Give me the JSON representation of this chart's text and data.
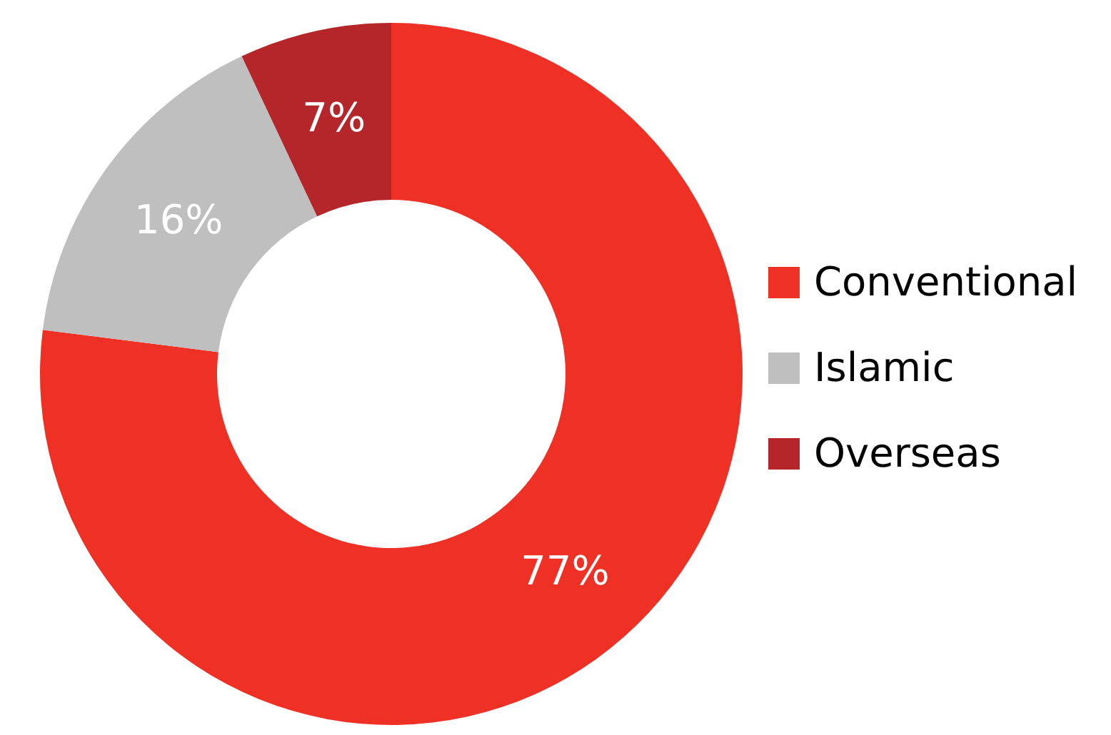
{
  "chart_data": {
    "type": "donut",
    "categories": [
      "Conventional",
      "Islamic",
      "Overseas"
    ],
    "values": [
      77,
      16,
      7
    ],
    "colors": [
      "#ee3124",
      "#bfbfbf",
      "#b5262b"
    ],
    "value_labels": [
      "77%",
      "16%",
      "7%"
    ],
    "legend": "right"
  }
}
